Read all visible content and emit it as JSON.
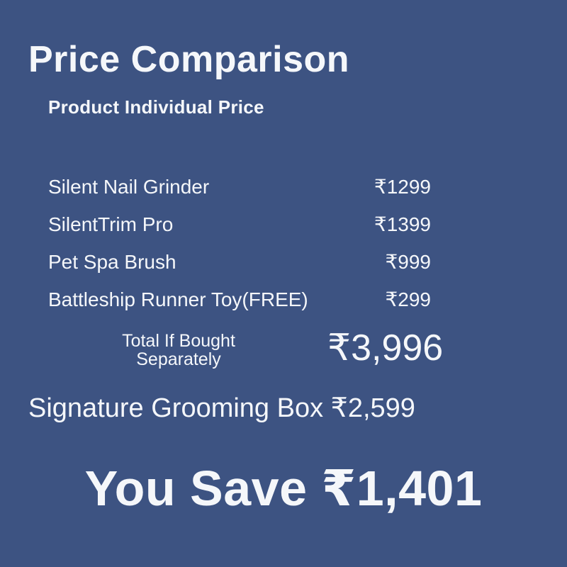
{
  "colors": {
    "background": "#3d5382",
    "text": "#f5f7fa"
  },
  "header": {
    "title": "Price Comparison",
    "subtitle": "Product Individual Price"
  },
  "products": [
    {
      "name": "Silent Nail Grinder",
      "price": "₹1299"
    },
    {
      "name": "SilentTrim Pro",
      "price": "₹1399"
    },
    {
      "name": "Pet Spa Brush",
      "price": "₹999"
    },
    {
      "name": "Battleship Runner Toy(FREE)",
      "price": "₹299"
    }
  ],
  "total": {
    "label_line1": "Total If Bought",
    "label_line2": "Separately",
    "value": "₹3,996"
  },
  "bundle": {
    "label": "Signature Grooming Box",
    "price": "₹2,599"
  },
  "savings": {
    "label": "You Save",
    "amount": "₹1,401"
  },
  "chart_data": {
    "type": "table",
    "title": "Price Comparison",
    "subtitle": "Product Individual Price",
    "columns": [
      "Product",
      "Individual Price"
    ],
    "rows": [
      [
        "Silent Nail Grinder",
        1299
      ],
      [
        "SilentTrim Pro",
        1399
      ],
      [
        "Pet Spa Brush",
        999
      ],
      [
        "Battleship Runner Toy(FREE)",
        299
      ]
    ],
    "currency": "₹",
    "total_if_bought_separately": 3996,
    "bundle_name": "Signature Grooming Box",
    "bundle_price": 2599,
    "you_save": 1401,
    "layout_hints": {
      "price_alignment": "right",
      "background": "#3d5382"
    }
  }
}
